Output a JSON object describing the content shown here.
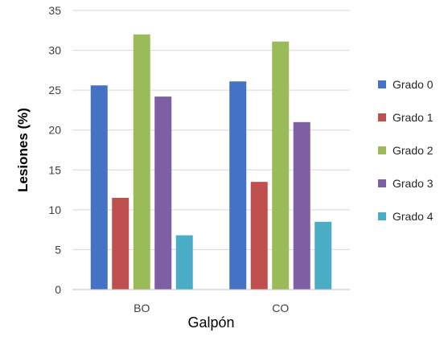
{
  "chart_data": {
    "type": "bar",
    "categories": [
      "BO",
      "CO"
    ],
    "series": [
      {
        "name": "Grado 0",
        "color": "#4472c4",
        "values": [
          25.6,
          26.1
        ]
      },
      {
        "name": " Grado 1",
        "color": "#c0504d",
        "values": [
          11.5,
          13.5
        ]
      },
      {
        "name": "Grado 2",
        "color": "#9bbb59",
        "values": [
          32.0,
          31.1
        ]
      },
      {
        "name": "Grado 3",
        "color": "#7f5fa3",
        "values": [
          24.2,
          21.0
        ]
      },
      {
        "name": "Grado 4",
        "color": "#4bacc6",
        "values": [
          6.8,
          8.5
        ]
      }
    ],
    "xlabel": "Galpón",
    "ylabel": "Lesiones (%)",
    "ylim": [
      0,
      35
    ],
    "yticks": [
      0,
      5,
      10,
      15,
      20,
      25,
      30,
      35
    ],
    "grid": true,
    "legend_position": "right"
  }
}
